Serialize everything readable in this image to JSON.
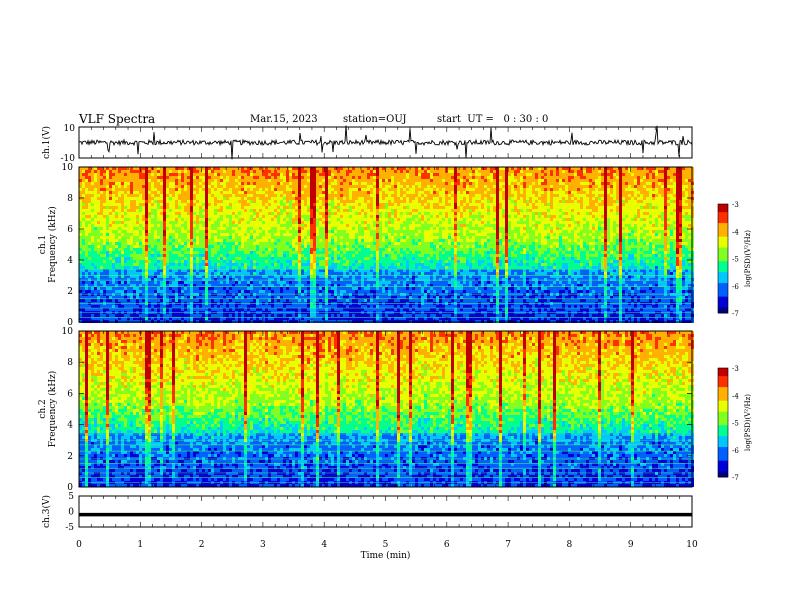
{
  "header": {
    "title": "VLF Spectra",
    "date": "Mar.15, 2023",
    "station": "station=OUJ",
    "start": "start  UT =   0 : 30 : 0"
  },
  "colors": {
    "colormap": [
      "#000080",
      "#0000d8",
      "#0060ff",
      "#00c8ff",
      "#00ff90",
      "#80ff20",
      "#e8ff00",
      "#ffb000",
      "#ff3000",
      "#c00000",
      "#ffffff"
    ]
  },
  "chart_data": [
    {
      "type": "line",
      "ylabel": "ch.1(V)",
      "yticks": [
        "10",
        "-10"
      ],
      "ylim": [
        -10,
        10
      ],
      "description_of_series": "noisy signal around 0 with spikes",
      "baseline": 0
    },
    {
      "type": "heatmap",
      "ylabel_top": "ch.1",
      "ylabel": "Frequency  (kHz)",
      "yticks": [
        "0",
        "2",
        "4",
        "6",
        "8",
        "10"
      ],
      "ylim": [
        0,
        10
      ],
      "colorbar": {
        "label": "log(PSD)(V²/Hz)",
        "ticks": [
          "-3",
          "-4",
          "-5",
          "-6",
          "-7"
        ],
        "range": [
          -7,
          -3
        ]
      }
    },
    {
      "type": "heatmap",
      "ylabel_top": "ch.2",
      "ylabel": "Frequency  (kHz)",
      "yticks": [
        "0",
        "2",
        "4",
        "6",
        "8",
        "10"
      ],
      "ylim": [
        0,
        10
      ],
      "colorbar": {
        "label": "log(PSD)(V²/Hz)",
        "ticks": [
          "-3",
          "-4",
          "-5",
          "-6",
          "-7"
        ],
        "range": [
          -7,
          -3
        ]
      }
    },
    {
      "type": "line",
      "ylabel": "ch.3(V)",
      "yticks": [
        "5",
        "0",
        "-5"
      ],
      "ylim": [
        -5,
        5
      ],
      "baseline": -1
    }
  ],
  "xaxis": {
    "label": "Time  (min)",
    "ticks": [
      "0",
      "1",
      "2",
      "3",
      "4",
      "5",
      "6",
      "7",
      "8",
      "9",
      "10"
    ],
    "xlim": [
      0,
      10
    ]
  }
}
